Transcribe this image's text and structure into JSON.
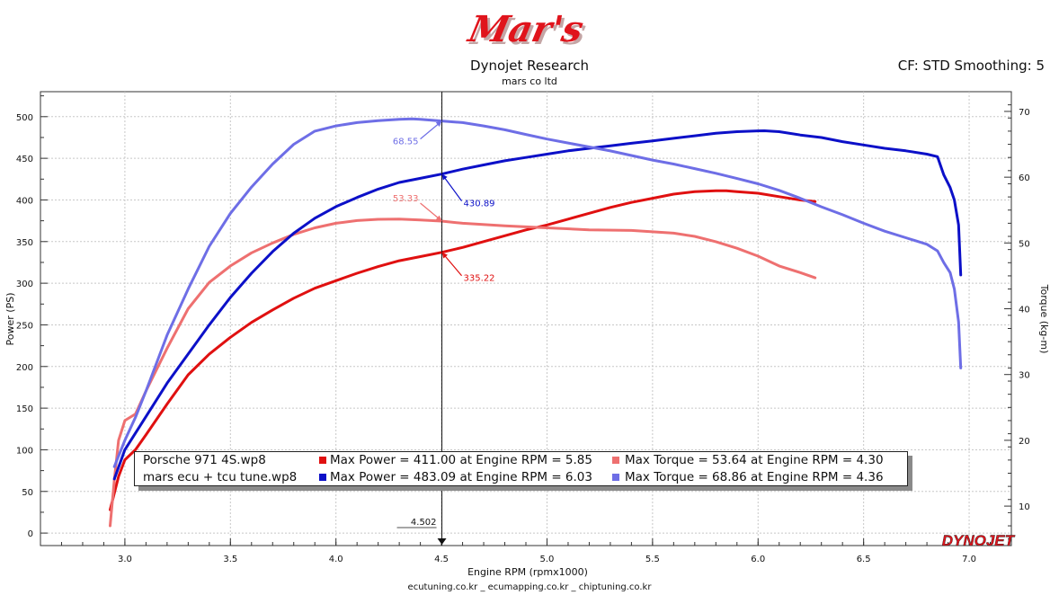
{
  "header": {
    "logo": "Mar's",
    "title": "Dynojet Research",
    "subtitle": "mars co ltd",
    "cf": "CF: STD Smoothing: 5"
  },
  "footer": "ecutuning.co.kr _ ecumapping.co.kr _ chiptuning.co.kr",
  "brand": "DYNOJET",
  "legend": [
    {
      "file": "Porsche 971 4S.wp8",
      "power_text": "Max Power = 411.00 at Engine RPM = 5.85",
      "power_color": "#e01010",
      "torque_text": "Max Torque = 53.64 at Engine RPM = 4.30",
      "torque_color": "#ee7070"
    },
    {
      "file": "mars ecu + tcu tune.wp8",
      "power_text": "Max Power = 483.09 at Engine RPM = 6.03",
      "power_color": "#0c10c8",
      "torque_text": "Max Torque = 68.86 at Engine RPM = 4.36",
      "torque_color": "#6e6ee6"
    }
  ],
  "chart_data": {
    "type": "line",
    "xlabel": "Engine RPM (rpmx1000)",
    "ylabel": "Power (PS)",
    "y2label": "Torque (kg-m)",
    "xlim": [
      2.6,
      7.2
    ],
    "ylim": [
      -15,
      530
    ],
    "y2lim": [
      4,
      73
    ],
    "x_ticks": [
      "3.0",
      "3.5",
      "4.0",
      "4.5",
      "5.0",
      "5.5",
      "6.0",
      "6.5",
      "7.0"
    ],
    "y_ticks": [
      "0",
      "50",
      "100",
      "150",
      "200",
      "250",
      "300",
      "350",
      "400",
      "450",
      "500"
    ],
    "y2_ticks": [
      "10",
      "20",
      "30",
      "40",
      "50",
      "60",
      "70"
    ],
    "grid": true,
    "cursor": {
      "x": 4.502,
      "label": "4.502"
    },
    "cursor_labels": [
      {
        "series": "mars ecu + tcu tune torque",
        "text": "68.55",
        "color": "#6e6ee6"
      },
      {
        "series": "mars ecu + tcu tune power",
        "text": "430.89",
        "color": "#0c10c8"
      },
      {
        "series": "Porsche 971 4S torque",
        "text": "53.33",
        "color": "#ee7070"
      },
      {
        "series": "Porsche 971 4S power",
        "text": "335.22",
        "color": "#e01010"
      }
    ],
    "series": [
      {
        "name": "Porsche 971 4S.wp8 Power",
        "axis": "left",
        "color": "#e01010",
        "x": [
          2.93,
          2.97,
          3.0,
          3.05,
          3.1,
          3.2,
          3.3,
          3.4,
          3.5,
          3.6,
          3.7,
          3.8,
          3.9,
          4.0,
          4.1,
          4.2,
          4.3,
          4.4,
          4.5,
          4.6,
          4.7,
          4.8,
          4.9,
          5.0,
          5.1,
          5.2,
          5.3,
          5.4,
          5.5,
          5.6,
          5.7,
          5.8,
          5.85,
          5.9,
          6.0,
          6.1,
          6.2,
          6.27
        ],
        "y": [
          28,
          68,
          88,
          100,
          118,
          155,
          190,
          215,
          235,
          253,
          268,
          282,
          294,
          303,
          312,
          320,
          327,
          332,
          337,
          343,
          350,
          357,
          364,
          370,
          377,
          384,
          391,
          397,
          402,
          407,
          410,
          411,
          411,
          410,
          408,
          404,
          400,
          398
        ]
      },
      {
        "name": "Porsche 971 4S.wp8 Torque",
        "axis": "right",
        "color": "#ee7070",
        "x": [
          2.93,
          2.95,
          2.97,
          3.0,
          3.05,
          3.1,
          3.2,
          3.3,
          3.4,
          3.5,
          3.6,
          3.7,
          3.8,
          3.9,
          4.0,
          4.1,
          4.2,
          4.3,
          4.4,
          4.5,
          4.6,
          4.8,
          5.0,
          5.2,
          5.4,
          5.6,
          5.7,
          5.8,
          5.9,
          6.0,
          6.1,
          6.2,
          6.27
        ],
        "y": [
          7,
          14,
          20,
          23,
          24,
          27.5,
          34,
          40,
          44,
          46.5,
          48.5,
          50,
          51.3,
          52.3,
          53,
          53.4,
          53.6,
          53.64,
          53.5,
          53.33,
          53,
          52.6,
          52.3,
          52,
          51.9,
          51.5,
          51,
          50.2,
          49.2,
          48,
          46.5,
          45.5,
          44.7
        ]
      },
      {
        "name": "mars ecu + tcu tune.wp8 Power",
        "axis": "left",
        "color": "#0c10c8",
        "x": [
          2.95,
          3.0,
          3.1,
          3.2,
          3.3,
          3.4,
          3.5,
          3.6,
          3.7,
          3.8,
          3.9,
          4.0,
          4.1,
          4.2,
          4.3,
          4.4,
          4.5,
          4.6,
          4.7,
          4.8,
          4.9,
          5.0,
          5.1,
          5.2,
          5.3,
          5.4,
          5.5,
          5.6,
          5.7,
          5.8,
          5.9,
          6.0,
          6.03,
          6.1,
          6.2,
          6.3,
          6.4,
          6.5,
          6.6,
          6.7,
          6.8,
          6.85,
          6.88,
          6.91,
          6.93,
          6.95,
          6.96
        ],
        "y": [
          65,
          100,
          140,
          180,
          215,
          250,
          283,
          312,
          338,
          360,
          378,
          392,
          403,
          413,
          421,
          426,
          431,
          437,
          442,
          447,
          451,
          455,
          459,
          462,
          465,
          468,
          471,
          474,
          477,
          480,
          482,
          483,
          483.09,
          482,
          478,
          475,
          470,
          466,
          462,
          459,
          455,
          452,
          430,
          415,
          400,
          370,
          310
        ]
      },
      {
        "name": "mars ecu + tcu tune.wp8 Torque",
        "axis": "right",
        "color": "#6e6ee6",
        "x": [
          2.95,
          3.0,
          3.05,
          3.1,
          3.2,
          3.3,
          3.4,
          3.5,
          3.6,
          3.7,
          3.8,
          3.9,
          4.0,
          4.1,
          4.2,
          4.3,
          4.36,
          4.4,
          4.5,
          4.6,
          4.7,
          4.8,
          4.9,
          5.0,
          5.1,
          5.2,
          5.3,
          5.4,
          5.5,
          5.6,
          5.7,
          5.8,
          5.9,
          6.0,
          6.1,
          6.2,
          6.3,
          6.4,
          6.5,
          6.6,
          6.7,
          6.8,
          6.85,
          6.88,
          6.91,
          6.93,
          6.95,
          6.96
        ],
        "y": [
          16,
          20,
          23.5,
          27.5,
          36,
          43,
          49.5,
          54.5,
          58.5,
          62,
          65,
          67,
          67.8,
          68.3,
          68.6,
          68.8,
          68.86,
          68.8,
          68.55,
          68.3,
          67.8,
          67.2,
          66.5,
          65.8,
          65.2,
          64.6,
          64,
          63.3,
          62.6,
          62,
          61.3,
          60.6,
          59.8,
          59,
          58,
          56.8,
          55.5,
          54.3,
          53,
          51.8,
          50.8,
          49.8,
          48.8,
          47,
          45.5,
          43,
          38,
          31
        ]
      }
    ]
  }
}
